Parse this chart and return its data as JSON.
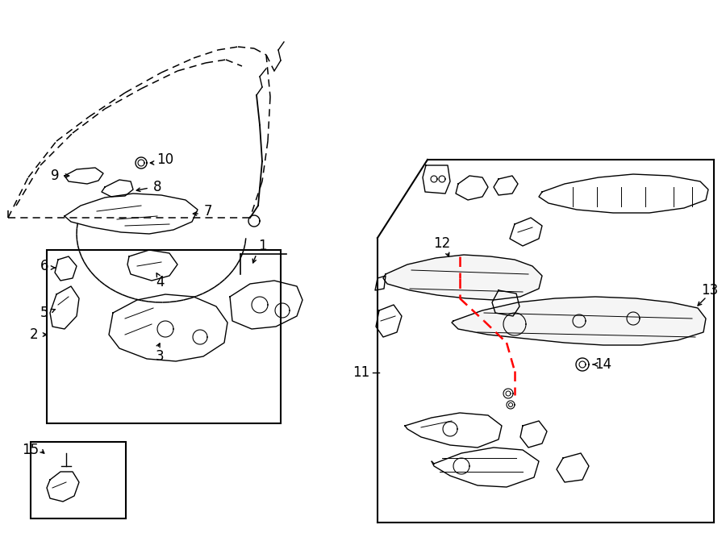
{
  "bg_color": "#ffffff",
  "line_color": "#000000",
  "red_color": "#ff0000",
  "fig_width": 9.0,
  "fig_height": 6.61,
  "dpi": 100
}
